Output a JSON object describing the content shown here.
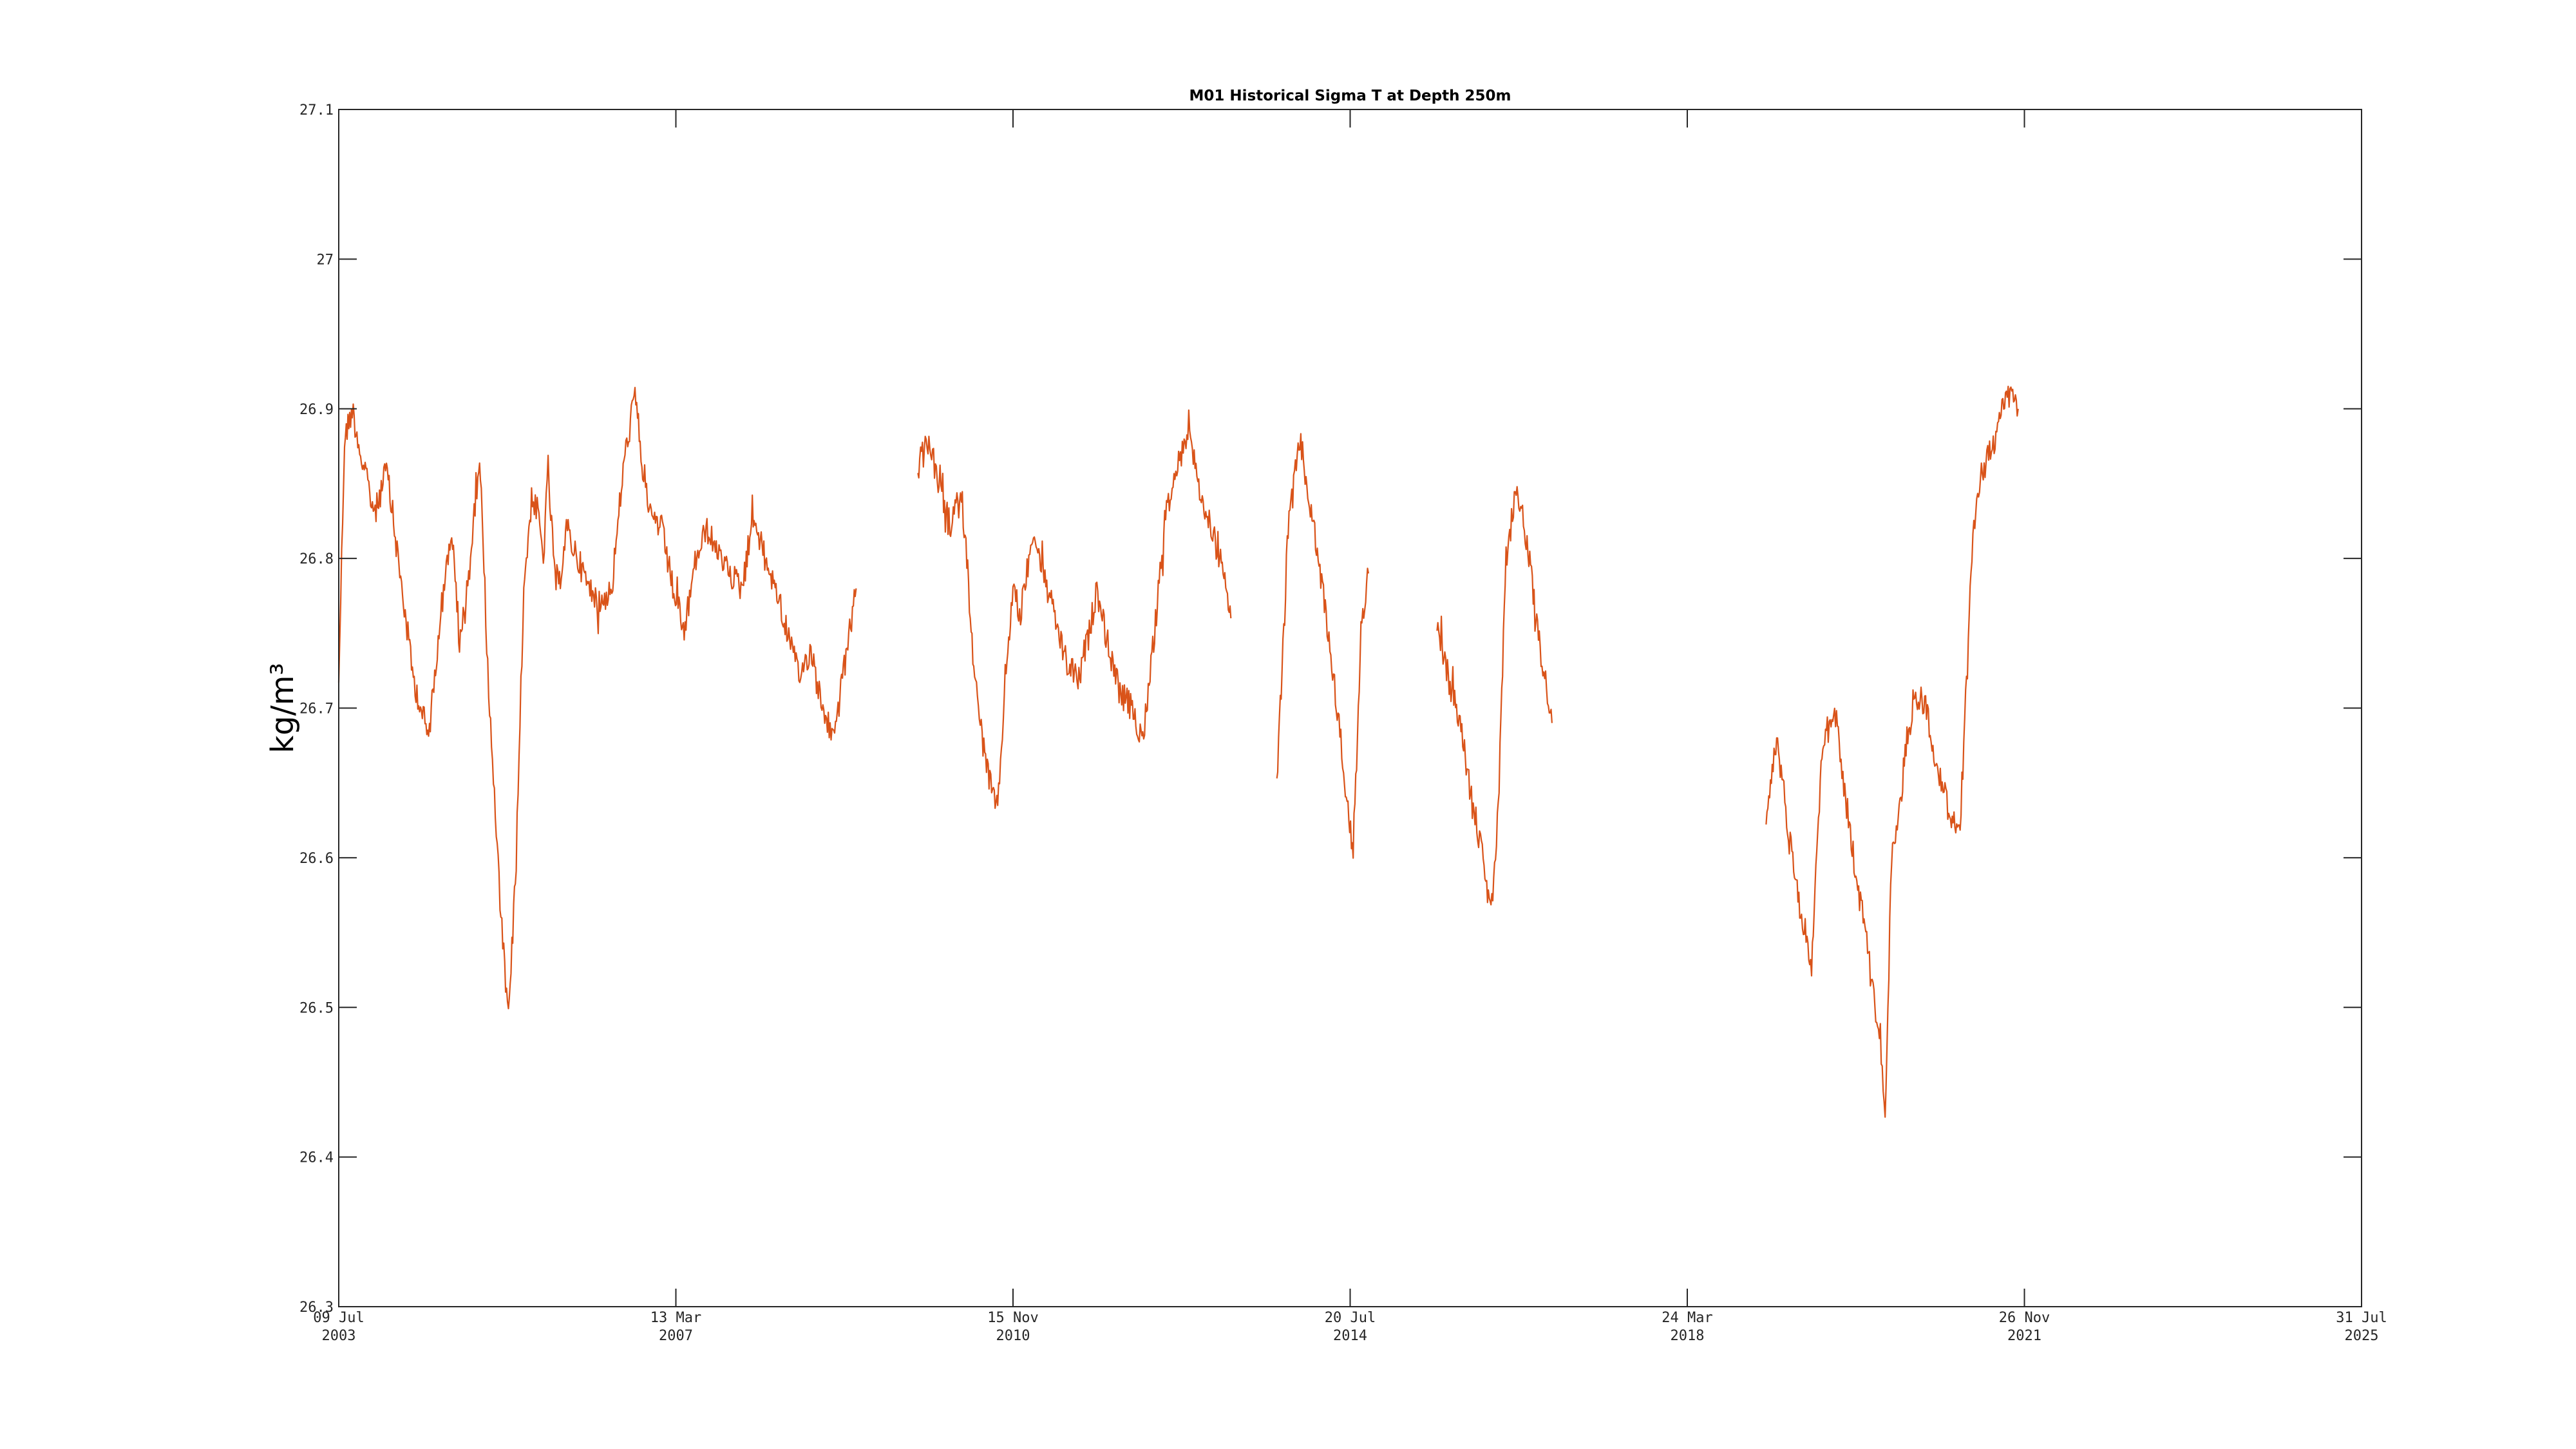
{
  "chart_data": {
    "type": "line",
    "title": "M01 Historical Sigma T at Depth 250m",
    "ylabel": "kg/m³",
    "xlabel": "",
    "xlim": [
      "2003-07-09",
      "2025-07-31"
    ],
    "ylim": [
      26.3,
      27.1
    ],
    "x_ticks": [
      {
        "date": "2003-07-09",
        "line1": "09 Jul",
        "line2": "2003"
      },
      {
        "date": "2007-03-13",
        "line1": "13 Mar",
        "line2": "2007"
      },
      {
        "date": "2010-11-15",
        "line1": "15 Nov",
        "line2": "2010"
      },
      {
        "date": "2014-07-20",
        "line1": "20 Jul",
        "line2": "2014"
      },
      {
        "date": "2018-03-24",
        "line1": "24 Mar",
        "line2": "2018"
      },
      {
        "date": "2021-11-26",
        "line1": "26 Nov",
        "line2": "2021"
      },
      {
        "date": "2025-07-31",
        "line1": "31 Jul",
        "line2": "2025"
      }
    ],
    "y_ticks": [
      "26.3",
      "26.4",
      "26.5",
      "26.6",
      "26.7",
      "26.8",
      "26.9",
      "27",
      "27.1"
    ],
    "grid": false,
    "colors": {
      "series": "#D95319",
      "axes": "#262626"
    },
    "series": [
      {
        "segments": [
          {
            "x": [
              "2003-07-09",
              "2003-08-01",
              "2003-09-01",
              "2003-10-15",
              "2003-12-01",
              "2004-01-15",
              "2004-03-01",
              "2004-05-01",
              "2004-07-01",
              "2004-08-15",
              "2004-10-01",
              "2004-11-01",
              "2004-12-15",
              "2005-01-20",
              "2005-02-10",
              "2005-03-01",
              "2005-03-20",
              "2005-04-15",
              "2005-05-15",
              "2005-06-15",
              "2005-07-15",
              "2005-08-15",
              "2005-09-10",
              "2005-10-01",
              "2005-10-20",
              "2005-11-10",
              "2005-12-01",
              "2006-01-01",
              "2006-02-15",
              "2006-04-01",
              "2006-05-15",
              "2006-07-01",
              "2006-08-15",
              "2006-10-01",
              "2006-11-01",
              "2006-12-01",
              "2007-01-15",
              "2007-03-01",
              "2007-04-15",
              "2007-06-01",
              "2007-07-15",
              "2007-09-01",
              "2007-10-15",
              "2007-12-01",
              "2008-01-15",
              "2008-03-01",
              "2008-04-15",
              "2008-06-01",
              "2008-07-15",
              "2008-09-01",
              "2008-10-15",
              "2008-12-01",
              "2009-01-15",
              "2009-02-28"
            ],
            "y": [
              26.72,
              26.88,
              26.9,
              26.86,
              26.83,
              26.86,
              26.8,
              26.72,
              26.68,
              26.76,
              26.82,
              26.74,
              26.8,
              26.87,
              26.78,
              26.7,
              26.64,
              26.56,
              26.49,
              26.6,
              26.78,
              26.84,
              26.83,
              26.8,
              26.86,
              26.8,
              26.78,
              26.82,
              26.8,
              26.78,
              26.77,
              26.78,
              26.86,
              26.91,
              26.86,
              26.83,
              26.82,
              26.78,
              26.75,
              26.8,
              26.82,
              26.8,
              26.79,
              26.78,
              26.83,
              26.8,
              26.78,
              26.75,
              26.72,
              26.74,
              26.7,
              26.68,
              26.73,
              26.78
            ]
          },
          {
            "x": [
              "2009-11-01",
              "2009-12-15",
              "2010-02-01",
              "2010-03-15",
              "2010-04-20",
              "2010-05-15",
              "2010-06-15",
              "2010-07-15",
              "2010-08-15",
              "2010-09-15",
              "2010-10-15",
              "2010-11-15",
              "2010-12-15",
              "2011-02-01",
              "2011-03-15",
              "2011-05-01",
              "2011-06-15",
              "2011-08-01",
              "2011-09-15",
              "2011-10-15",
              "2011-12-01",
              "2012-01-15",
              "2012-03-01",
              "2012-04-15",
              "2012-06-01",
              "2012-07-15",
              "2012-09-01",
              "2012-10-15",
              "2012-12-01",
              "2013-01-15",
              "2013-03-01",
              "2013-04-01"
            ],
            "y": [
              26.86,
              26.88,
              26.84,
              26.82,
              26.85,
              26.8,
              26.72,
              26.68,
              26.65,
              26.63,
              26.72,
              26.78,
              26.76,
              26.82,
              26.79,
              26.76,
              26.73,
              26.72,
              26.75,
              26.78,
              26.74,
              26.71,
              26.7,
              26.68,
              26.75,
              26.83,
              26.86,
              26.89,
              26.84,
              26.82,
              26.79,
              26.76
            ]
          },
          {
            "x": [
              "2013-10-01",
              "2013-11-15",
              "2014-01-01",
              "2014-02-15",
              "2014-04-01",
              "2014-05-15",
              "2014-07-01",
              "2014-08-01",
              "2014-09-01",
              "2014-10-01"
            ],
            "y": [
              26.65,
              26.82,
              26.88,
              26.83,
              26.78,
              26.72,
              26.65,
              26.6,
              26.75,
              26.79
            ]
          },
          {
            "x": [
              "2015-07-01",
              "2015-08-15",
              "2015-10-01",
              "2015-11-15",
              "2016-01-01",
              "2016-02-01",
              "2016-03-01",
              "2016-04-01",
              "2016-05-15",
              "2016-07-01",
              "2016-08-15",
              "2016-10-01"
            ],
            "y": [
              26.76,
              26.72,
              26.69,
              26.64,
              26.6,
              26.56,
              26.63,
              26.8,
              26.85,
              26.8,
              26.74,
              26.69
            ]
          },
          {
            "x": [
              "2019-02-01",
              "2019-03-15",
              "2019-05-01",
              "2019-06-15",
              "2019-08-01",
              "2019-09-15",
              "2019-11-01",
              "2019-12-15",
              "2020-02-01",
              "2020-03-15",
              "2020-05-01",
              "2020-05-20",
              "2020-06-15",
              "2020-07-15",
              "2020-08-15",
              "2020-09-15",
              "2020-11-01",
              "2020-12-15",
              "2021-02-01",
              "2021-03-15",
              "2021-05-01",
              "2021-05-20",
              "2021-06-15",
              "2021-08-01",
              "2021-09-15",
              "2021-11-01"
            ],
            "y": [
              26.62,
              26.68,
              26.62,
              26.57,
              26.53,
              26.68,
              26.7,
              26.64,
              26.58,
              26.54,
              26.48,
              26.43,
              26.6,
              26.63,
              26.68,
              26.71,
              26.7,
              26.66,
              26.63,
              26.62,
              26.8,
              26.84,
              26.86,
              26.88,
              26.91,
              26.9
            ]
          }
        ]
      }
    ]
  }
}
